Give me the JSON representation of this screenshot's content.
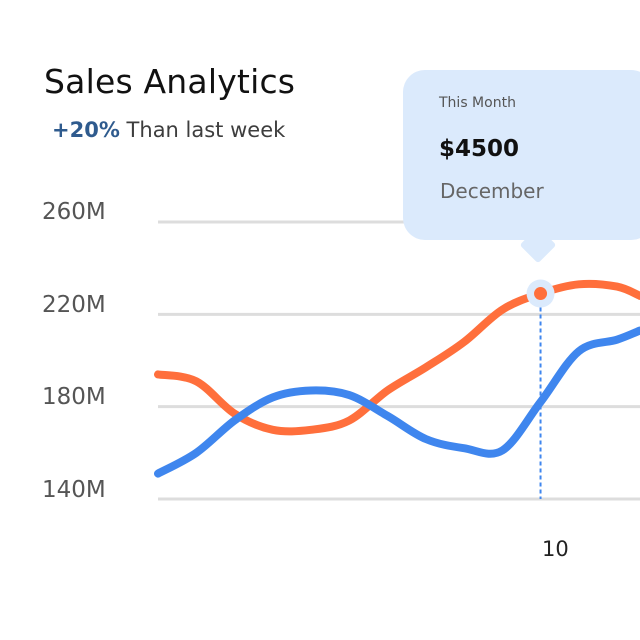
{
  "header": {
    "title": "Sales Analytics",
    "delta": "+20%",
    "delta_text": " Than last week"
  },
  "tooltip": {
    "label": "This Month",
    "value": "$4500",
    "month": "December"
  },
  "colors": {
    "orange_series": "#ff6f3c",
    "blue_series": "#3f86ee",
    "grid": "#dddddd",
    "tooltip_bg": "#dbeafc",
    "delta": "#2f5b8e"
  },
  "chart_data": {
    "type": "line",
    "title": "Sales Analytics",
    "subtitle": "+20% Than last week",
    "y_ticks": [
      "140M",
      "180M",
      "220M",
      "260M"
    ],
    "y_tick_values": [
      140,
      180,
      220,
      260
    ],
    "ylim": [
      140,
      260
    ],
    "x_ticks": [
      10
    ],
    "x_tick_labels": [
      "10"
    ],
    "xlim": [
      0,
      12.6
    ],
    "grid": "horizontal",
    "highlight": {
      "x": 10,
      "y": 229
    },
    "series": [
      {
        "color": "#ff6f3c",
        "x": [
          0,
          1,
          2,
          3,
          4,
          5,
          6,
          7,
          8,
          9,
          10,
          11,
          12,
          12.6
        ],
        "values": [
          194,
          191,
          177,
          170,
          170,
          174,
          187,
          197,
          208,
          222,
          229,
          233,
          232,
          228
        ]
      },
      {
        "color": "#3f86ee",
        "x": [
          0,
          1,
          2,
          3,
          4,
          5,
          6,
          7,
          8,
          9,
          10,
          11,
          12,
          12.6
        ],
        "values": [
          151,
          160,
          174,
          184,
          187,
          185,
          176,
          166,
          162,
          161,
          182,
          204,
          209,
          213
        ]
      }
    ]
  }
}
